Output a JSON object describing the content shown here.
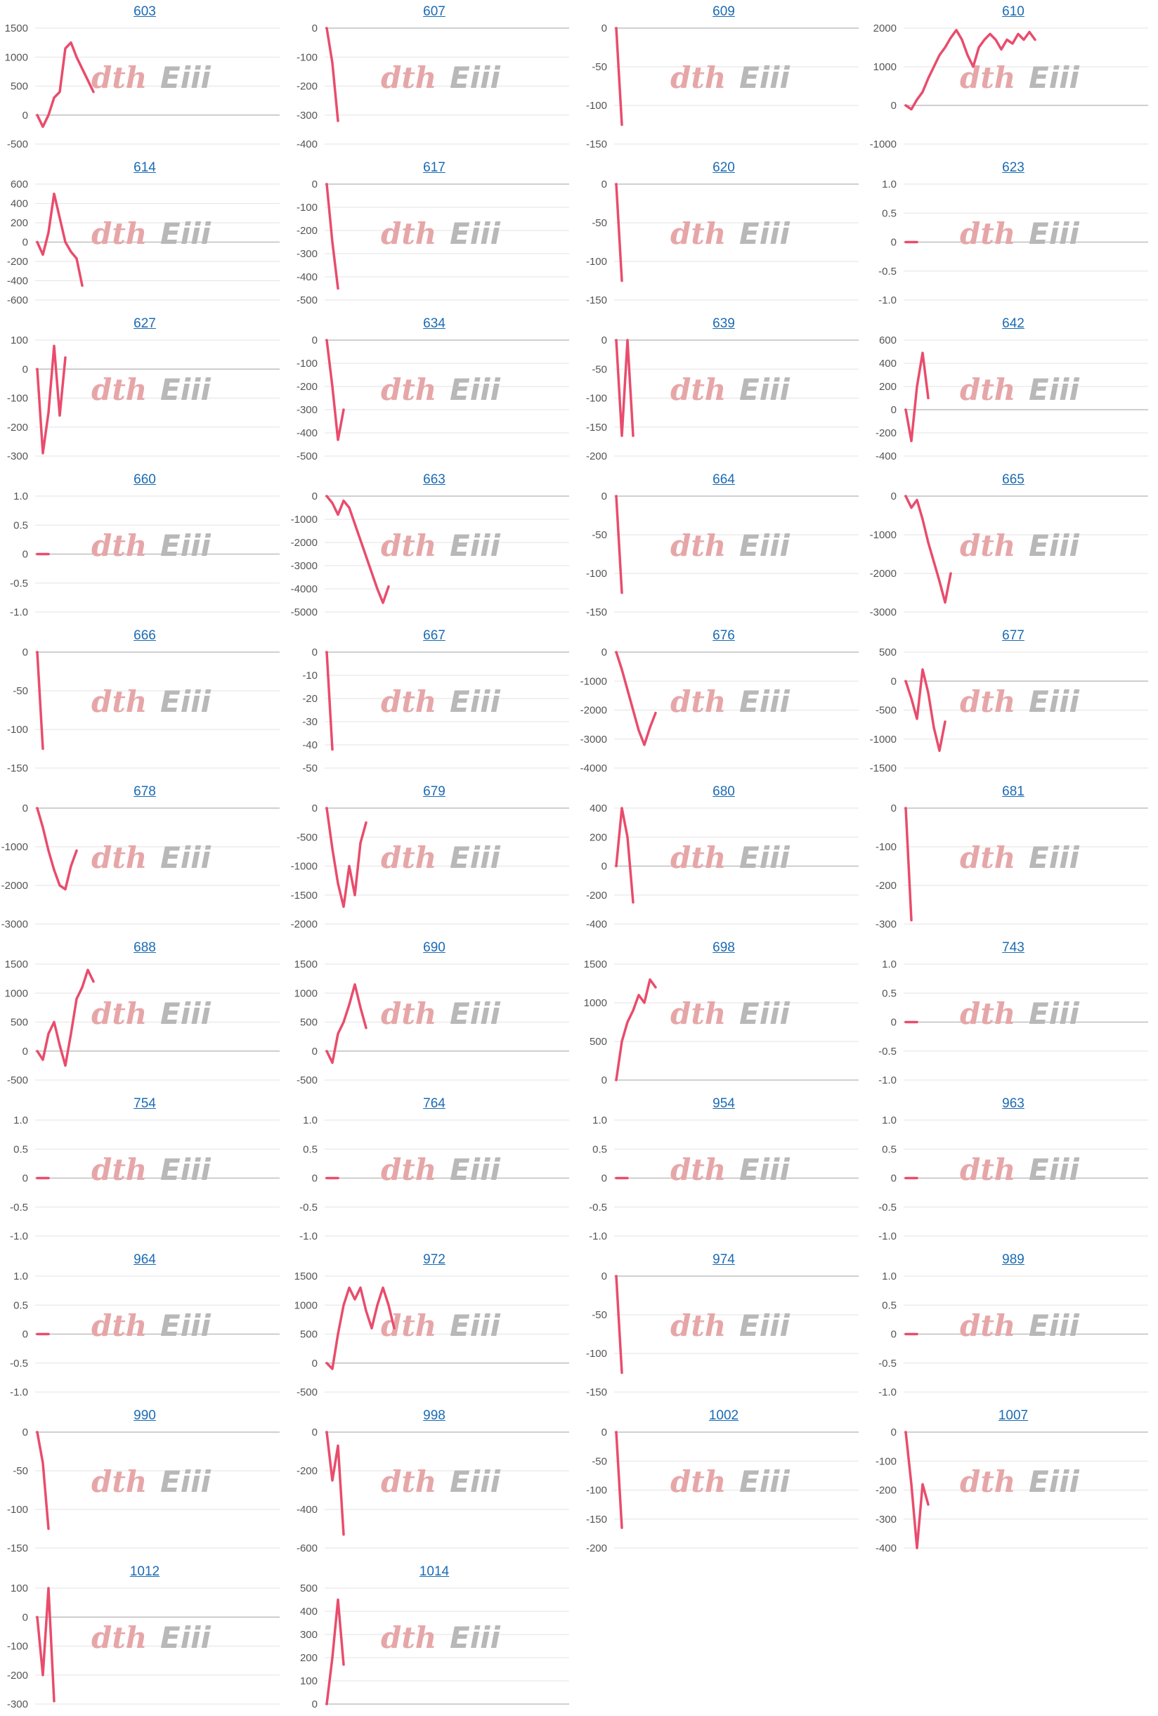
{
  "watermark": {
    "part1": "dth",
    "part2": "Eiii",
    "color1": "#e6a6a8",
    "color2": "#b8b8b8"
  },
  "series_color": "#e94c6c",
  "chart_data": [
    {
      "type": "line",
      "title": "603",
      "yticks": [
        "1500",
        "1000",
        "500",
        "0",
        "-500"
      ],
      "ylim": [
        -500,
        1500
      ],
      "values": [
        0,
        -200,
        0,
        300,
        400,
        1150,
        1250,
        1000,
        800,
        600,
        400
      ]
    },
    {
      "type": "line",
      "title": "607",
      "yticks": [
        "0",
        "-100",
        "-200",
        "-300",
        "-400"
      ],
      "ylim": [
        -400,
        0
      ],
      "values": [
        0,
        -120,
        -320
      ]
    },
    {
      "type": "line",
      "title": "609",
      "yticks": [
        "0",
        "-50",
        "-100",
        "-150"
      ],
      "ylim": [
        -150,
        0
      ],
      "values": [
        0,
        -125
      ]
    },
    {
      "type": "line",
      "title": "610",
      "yticks": [
        "2000",
        "1000",
        "0",
        "-1000"
      ],
      "ylim": [
        -1000,
        2000
      ],
      "values": [
        0,
        -100,
        150,
        350,
        700,
        1000,
        1300,
        1500,
        1750,
        1950,
        1700,
        1300,
        1000,
        1500,
        1700,
        1850,
        1700,
        1450,
        1700,
        1600,
        1850,
        1700,
        1900,
        1700
      ]
    },
    {
      "type": "line",
      "title": "614",
      "yticks": [
        "600",
        "400",
        "200",
        "0",
        "-200",
        "-400",
        "-600"
      ],
      "ylim": [
        -600,
        600
      ],
      "values": [
        0,
        -130,
        100,
        500,
        250,
        0,
        -100,
        -170,
        -450
      ]
    },
    {
      "type": "line",
      "title": "617",
      "yticks": [
        "0",
        "-100",
        "-200",
        "-300",
        "-400",
        "-500"
      ],
      "ylim": [
        -500,
        0
      ],
      "values": [
        0,
        -250,
        -450
      ]
    },
    {
      "type": "line",
      "title": "620",
      "yticks": [
        "0",
        "-50",
        "-100",
        "-150"
      ],
      "ylim": [
        -150,
        0
      ],
      "values": [
        0,
        -125
      ]
    },
    {
      "type": "line",
      "title": "623",
      "yticks": [
        "1.0",
        "0.5",
        "0",
        "-0.5",
        "-1.0"
      ],
      "ylim": [
        -1,
        1
      ],
      "values": [
        0,
        0,
        0
      ]
    },
    {
      "type": "line",
      "title": "627",
      "yticks": [
        "100",
        "0",
        "-100",
        "-200",
        "-300"
      ],
      "ylim": [
        -300,
        100
      ],
      "values": [
        0,
        -290,
        -150,
        80,
        -160,
        40
      ]
    },
    {
      "type": "line",
      "title": "634",
      "yticks": [
        "0",
        "-100",
        "-200",
        "-300",
        "-400",
        "-500"
      ],
      "ylim": [
        -500,
        0
      ],
      "values": [
        0,
        -200,
        -430,
        -300
      ]
    },
    {
      "type": "line",
      "title": "639",
      "yticks": [
        "0",
        "-50",
        "-100",
        "-150",
        "-200"
      ],
      "ylim": [
        -200,
        0
      ],
      "values": [
        0,
        -165,
        0,
        -165
      ]
    },
    {
      "type": "line",
      "title": "642",
      "yticks": [
        "600",
        "400",
        "200",
        "0",
        "-200",
        "-400"
      ],
      "ylim": [
        -400,
        600
      ],
      "values": [
        0,
        -270,
        200,
        490,
        100
      ]
    },
    {
      "type": "line",
      "title": "660",
      "yticks": [
        "1.0",
        "0.5",
        "0",
        "-0.5",
        "-1.0"
      ],
      "ylim": [
        -1,
        1
      ],
      "values": [
        0,
        0,
        0
      ]
    },
    {
      "type": "line",
      "title": "663",
      "yticks": [
        "0",
        "-1000",
        "-2000",
        "-3000",
        "-4000",
        "-5000"
      ],
      "ylim": [
        -5000,
        0
      ],
      "values": [
        0,
        -300,
        -800,
        -200,
        -500,
        -1200,
        -1900,
        -2600,
        -3300,
        -4000,
        -4600,
        -3900
      ]
    },
    {
      "type": "line",
      "title": "664",
      "yticks": [
        "0",
        "-50",
        "-100",
        "-150"
      ],
      "ylim": [
        -150,
        0
      ],
      "values": [
        0,
        -125
      ]
    },
    {
      "type": "line",
      "title": "665",
      "yticks": [
        "0",
        "-1000",
        "-2000",
        "-3000"
      ],
      "ylim": [
        -3000,
        0
      ],
      "values": [
        0,
        -300,
        -100,
        -600,
        -1200,
        -1700,
        -2200,
        -2750,
        -2000
      ]
    },
    {
      "type": "line",
      "title": "666",
      "yticks": [
        "0",
        "-50",
        "-100",
        "-150"
      ],
      "ylim": [
        -150,
        0
      ],
      "values": [
        0,
        -125
      ]
    },
    {
      "type": "line",
      "title": "667",
      "yticks": [
        "0",
        "-10",
        "-20",
        "-30",
        "-40",
        "-50"
      ],
      "ylim": [
        -50,
        0
      ],
      "values": [
        0,
        -42
      ]
    },
    {
      "type": "line",
      "title": "676",
      "yticks": [
        "0",
        "-1000",
        "-2000",
        "-3000",
        "-4000"
      ],
      "ylim": [
        -4000,
        0
      ],
      "values": [
        0,
        -600,
        -1300,
        -2000,
        -2700,
        -3200,
        -2600,
        -2100
      ]
    },
    {
      "type": "line",
      "title": "677",
      "yticks": [
        "500",
        "0",
        "-500",
        "-1000",
        "-1500"
      ],
      "ylim": [
        -1500,
        500
      ],
      "values": [
        0,
        -300,
        -650,
        200,
        -200,
        -800,
        -1200,
        -700
      ]
    },
    {
      "type": "line",
      "title": "678",
      "yticks": [
        "0",
        "-1000",
        "-2000",
        "-3000"
      ],
      "ylim": [
        -3000,
        0
      ],
      "values": [
        0,
        -500,
        -1100,
        -1600,
        -2000,
        -2100,
        -1500,
        -1100
      ]
    },
    {
      "type": "line",
      "title": "679",
      "yticks": [
        "0",
        "-500",
        "-1000",
        "-1500",
        "-2000"
      ],
      "ylim": [
        -2000,
        0
      ],
      "values": [
        0,
        -700,
        -1300,
        -1700,
        -1000,
        -1500,
        -600,
        -250
      ]
    },
    {
      "type": "line",
      "title": "680",
      "yticks": [
        "400",
        "200",
        "0",
        "-200",
        "-400"
      ],
      "ylim": [
        -400,
        400
      ],
      "values": [
        0,
        400,
        200,
        -250
      ]
    },
    {
      "type": "line",
      "title": "681",
      "yticks": [
        "0",
        "-100",
        "-200",
        "-300"
      ],
      "ylim": [
        -300,
        0
      ],
      "values": [
        0,
        -290
      ]
    },
    {
      "type": "line",
      "title": "688",
      "yticks": [
        "1500",
        "1000",
        "500",
        "0",
        "-500"
      ],
      "ylim": [
        -500,
        1500
      ],
      "values": [
        0,
        -150,
        300,
        500,
        100,
        -250,
        300,
        900,
        1100,
        1400,
        1200
      ]
    },
    {
      "type": "line",
      "title": "690",
      "yticks": [
        "1500",
        "1000",
        "500",
        "0",
        "-500"
      ],
      "ylim": [
        -500,
        1500
      ],
      "values": [
        0,
        -200,
        300,
        500,
        800,
        1150,
        750,
        400
      ]
    },
    {
      "type": "line",
      "title": "698",
      "yticks": [
        "1500",
        "1000",
        "500",
        "0"
      ],
      "ylim": [
        0,
        1500
      ],
      "values": [
        0,
        500,
        750,
        900,
        1100,
        1000,
        1300,
        1200
      ]
    },
    {
      "type": "line",
      "title": "743",
      "yticks": [
        "1.0",
        "0.5",
        "0",
        "-0.5",
        "-1.0"
      ],
      "ylim": [
        -1,
        1
      ],
      "values": [
        0,
        0,
        0
      ]
    },
    {
      "type": "line",
      "title": "754",
      "yticks": [
        "1.0",
        "0.5",
        "0",
        "-0.5",
        "-1.0"
      ],
      "ylim": [
        -1,
        1
      ],
      "values": [
        0,
        0,
        0
      ]
    },
    {
      "type": "line",
      "title": "764",
      "yticks": [
        "1.0",
        "0.5",
        "0",
        "-0.5",
        "-1.0"
      ],
      "ylim": [
        -1,
        1
      ],
      "values": [
        0,
        0,
        0
      ]
    },
    {
      "type": "line",
      "title": "954",
      "yticks": [
        "1.0",
        "0.5",
        "0",
        "-0.5",
        "-1.0"
      ],
      "ylim": [
        -1,
        1
      ],
      "values": [
        0,
        0,
        0
      ]
    },
    {
      "type": "line",
      "title": "963",
      "yticks": [
        "1.0",
        "0.5",
        "0",
        "-0.5",
        "-1.0"
      ],
      "ylim": [
        -1,
        1
      ],
      "values": [
        0,
        0,
        0
      ]
    },
    {
      "type": "line",
      "title": "964",
      "yticks": [
        "1.0",
        "0.5",
        "0",
        "-0.5",
        "-1.0"
      ],
      "ylim": [
        -1,
        1
      ],
      "values": [
        0,
        0,
        0
      ]
    },
    {
      "type": "line",
      "title": "972",
      "yticks": [
        "1500",
        "1000",
        "500",
        "0",
        "-500"
      ],
      "ylim": [
        -500,
        1500
      ],
      "values": [
        0,
        -100,
        500,
        1000,
        1300,
        1100,
        1300,
        900,
        600,
        1000,
        1300,
        1000,
        600
      ]
    },
    {
      "type": "line",
      "title": "974",
      "yticks": [
        "0",
        "-50",
        "-100",
        "-150"
      ],
      "ylim": [
        -150,
        0
      ],
      "values": [
        0,
        -125
      ]
    },
    {
      "type": "line",
      "title": "989",
      "yticks": [
        "1.0",
        "0.5",
        "0",
        "-0.5",
        "-1.0"
      ],
      "ylim": [
        -1,
        1
      ],
      "values": [
        0,
        0,
        0
      ]
    },
    {
      "type": "line",
      "title": "990",
      "yticks": [
        "0",
        "-50",
        "-100",
        "-150"
      ],
      "ylim": [
        -150,
        0
      ],
      "values": [
        0,
        -40,
        -125
      ]
    },
    {
      "type": "line",
      "title": "998",
      "yticks": [
        "0",
        "-200",
        "-400",
        "-600"
      ],
      "ylim": [
        -600,
        0
      ],
      "values": [
        0,
        -250,
        -70,
        -530
      ]
    },
    {
      "type": "line",
      "title": "1002",
      "yticks": [
        "0",
        "-50",
        "-100",
        "-150",
        "-200"
      ],
      "ylim": [
        -200,
        0
      ],
      "values": [
        0,
        -165
      ]
    },
    {
      "type": "line",
      "title": "1007",
      "yticks": [
        "0",
        "-100",
        "-200",
        "-300",
        "-400"
      ],
      "ylim": [
        -400,
        0
      ],
      "values": [
        0,
        -180,
        -400,
        -180,
        -250
      ]
    },
    {
      "type": "line",
      "title": "1012",
      "yticks": [
        "100",
        "0",
        "-100",
        "-200",
        "-300"
      ],
      "ylim": [
        -300,
        100
      ],
      "values": [
        0,
        -200,
        100,
        -290
      ]
    },
    {
      "type": "line",
      "title": "1014",
      "yticks": [
        "500",
        "400",
        "300",
        "200",
        "100",
        "0"
      ],
      "ylim": [
        0,
        500
      ],
      "values": [
        0,
        200,
        450,
        170
      ]
    }
  ]
}
